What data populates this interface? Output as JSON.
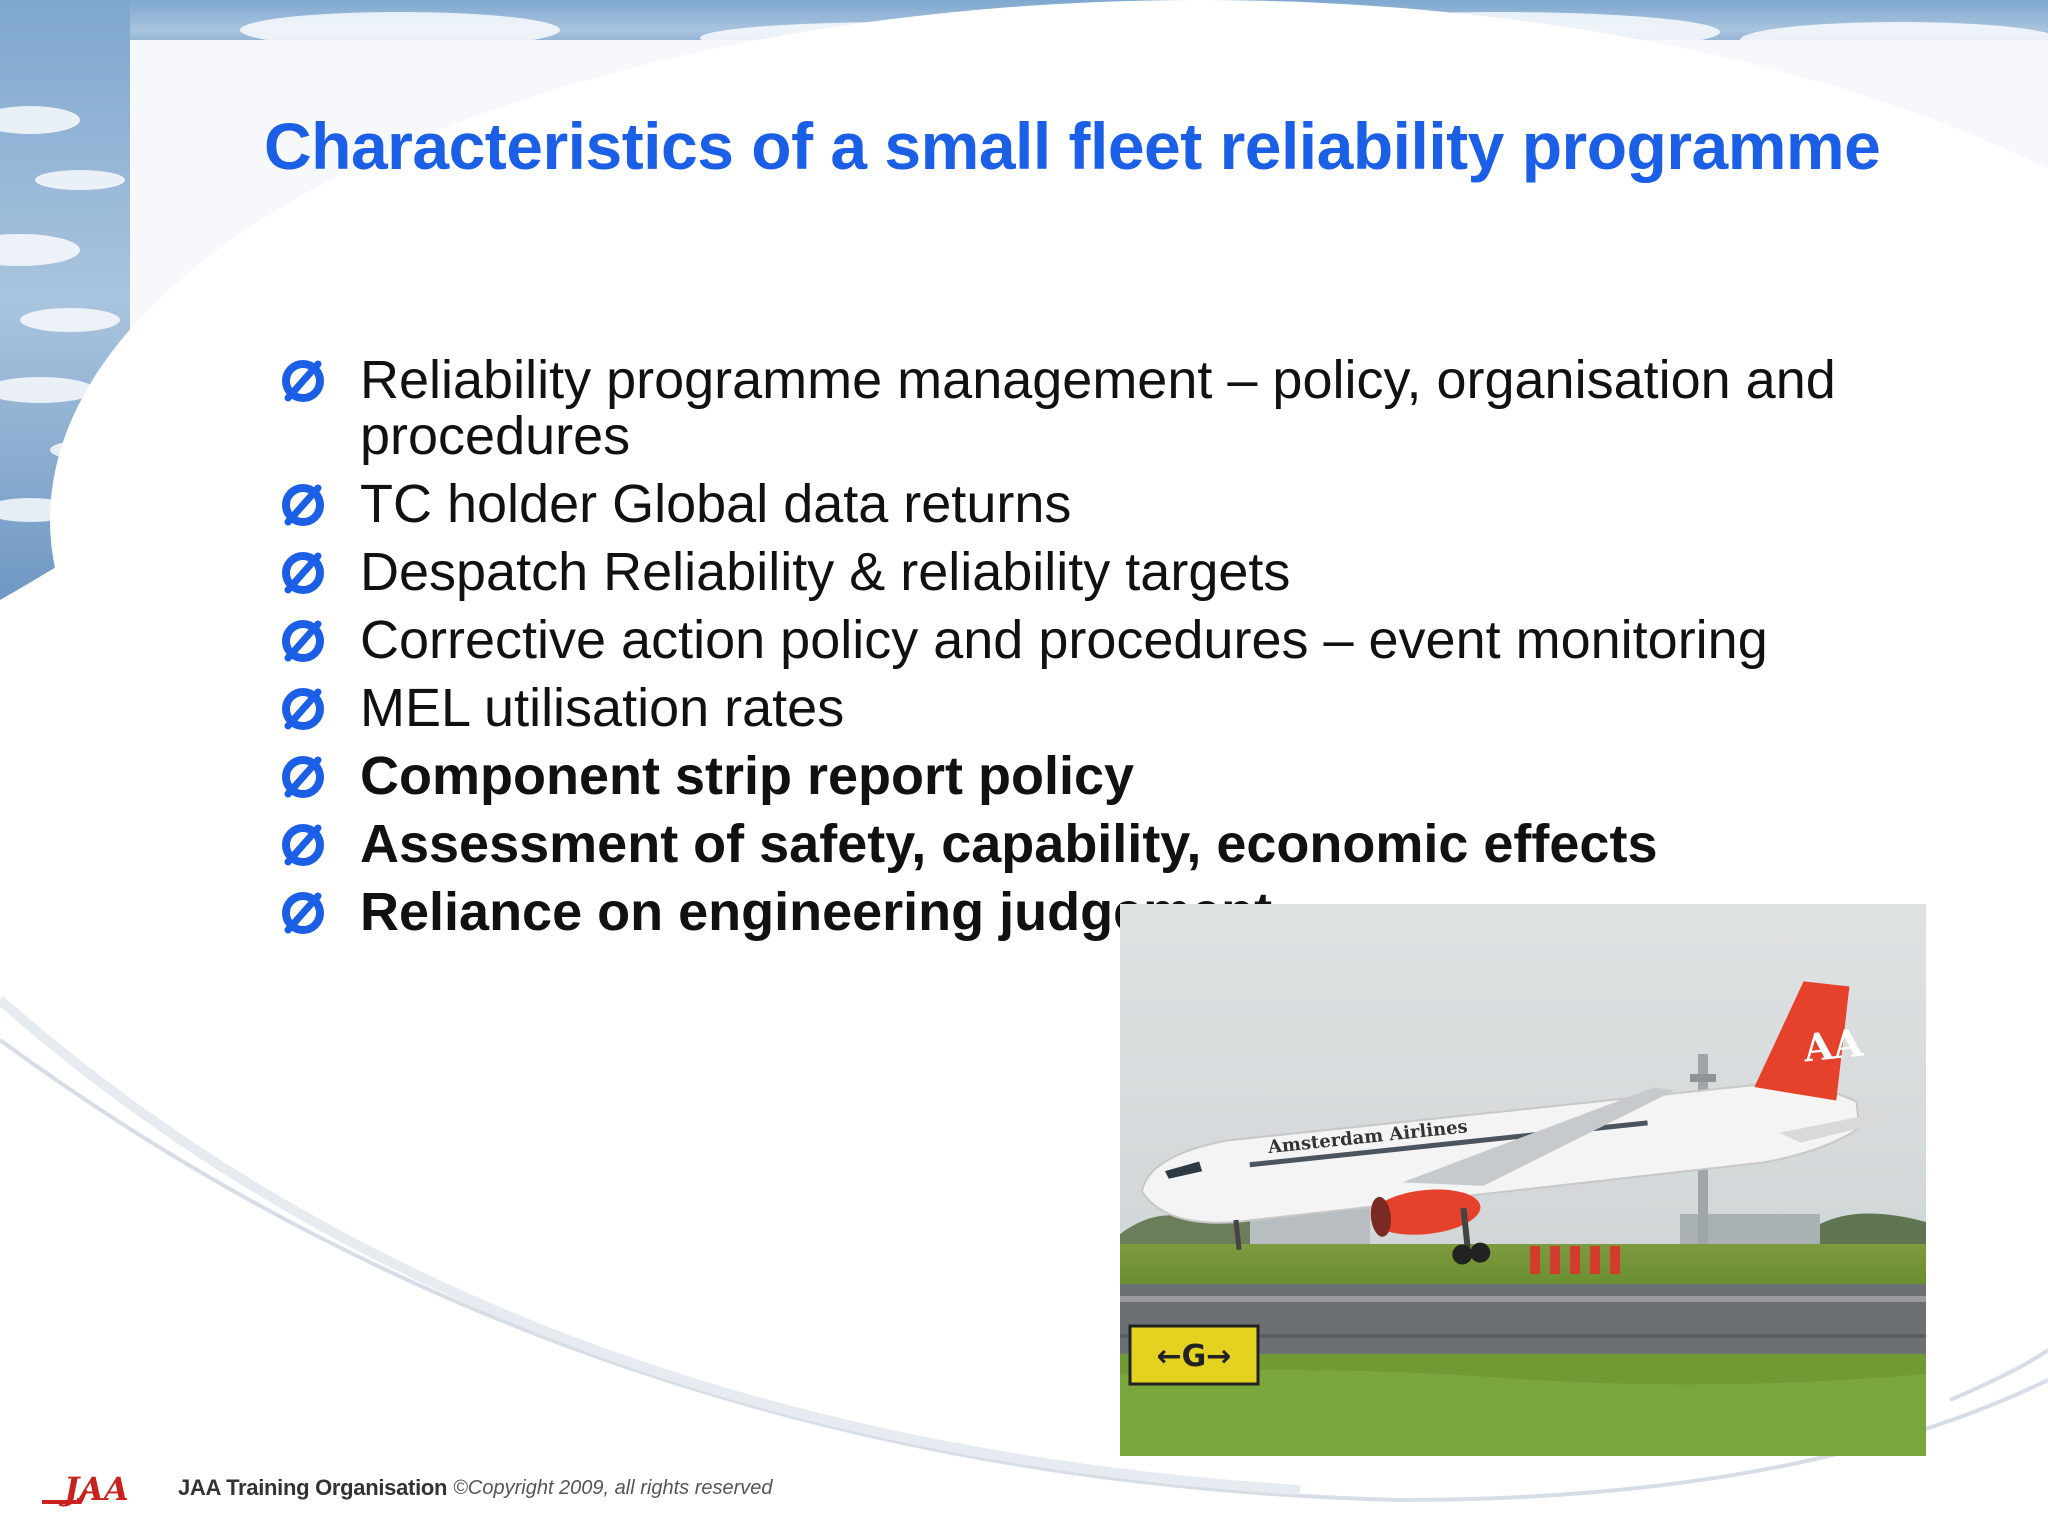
{
  "slide": {
    "title": "Characteristics of a small fleet reliability programme",
    "bullet_marker": "Ø",
    "bullets": [
      {
        "text": "Reliability programme management – policy, organisation and procedures",
        "bold": false
      },
      {
        "text": "TC holder Global data returns",
        "bold": false
      },
      {
        "text": "Despatch Reliability & reliability targets",
        "bold": false
      },
      {
        "text": "Corrective action policy and procedures – event monitoring",
        "bold": false
      },
      {
        "text": "MEL utilisation rates",
        "bold": false
      },
      {
        "text": "Component strip report policy",
        "bold": true
      },
      {
        "text": "Assessment of safety, capability, economic effects",
        "bold": true
      },
      {
        "text": "Reliance on engineering judgement",
        "bold": true
      }
    ]
  },
  "photo": {
    "airline_livery_text": "Amsterdam Airlines",
    "sign_text": "←G→"
  },
  "footer": {
    "logo_text": "JAA",
    "org": "JAA Training Organisation",
    "copyright": "©Copyright 2009, all rights reserved"
  },
  "colors": {
    "title": "#1a5fe6",
    "bullet_marker": "#1a5fe6",
    "body_text": "#111111",
    "logo": "#c8211e",
    "tail": "#e5412b"
  }
}
